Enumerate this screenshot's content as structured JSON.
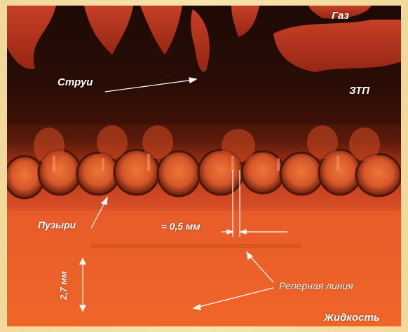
{
  "labels": {
    "gas": "Газ",
    "jets": "Струи",
    "ztp": "ЗТП",
    "bubbles": "Пузыри",
    "width": "≈ 0,5 мм",
    "reference_line": "Реперная линия",
    "height": "2,7 мм",
    "liquid": "Жидкость"
  },
  "colors": {
    "frame": "#f2d89a",
    "dark_zone": "#2a0c06",
    "liquid": "#f05a22"
  }
}
